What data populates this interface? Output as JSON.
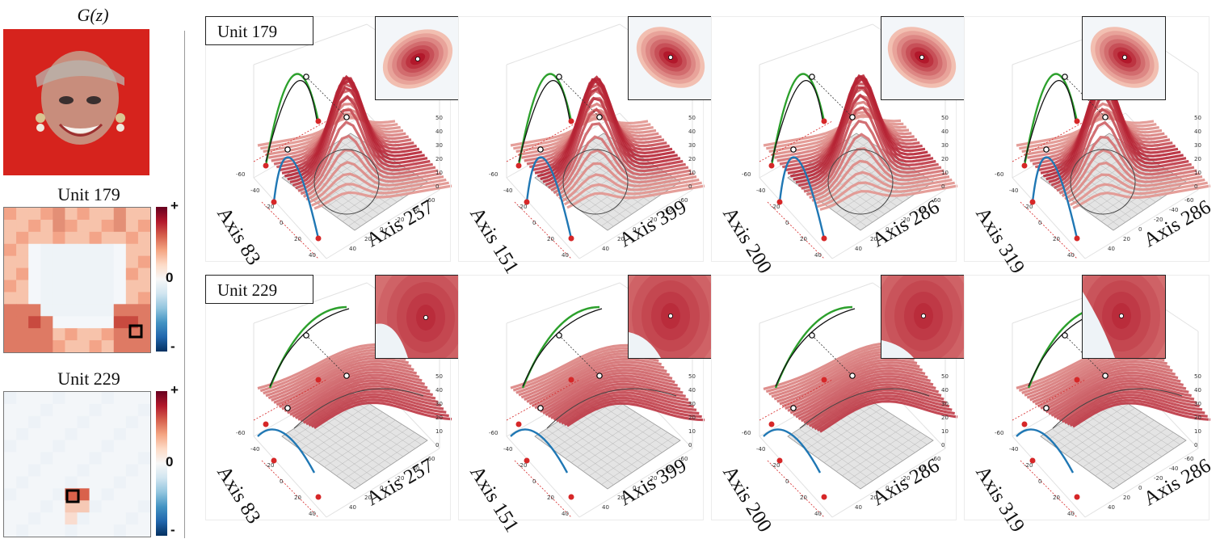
{
  "left_column": {
    "gz_title": "G(z)",
    "heatmaps": [
      {
        "title": "Unit 179",
        "top_tick": "+",
        "mid_tick": "0",
        "bottom_tick": "-"
      },
      {
        "title": "Unit 229",
        "top_tick": "+",
        "mid_tick": "0",
        "bottom_tick": "-"
      }
    ]
  },
  "rows": [
    {
      "label": "Unit 179",
      "panels": [
        {
          "axis_x": "Axis 83",
          "axis_y": "Axis 257"
        },
        {
          "axis_x": "Axis 151",
          "axis_y": "Axis 399"
        },
        {
          "axis_x": "Axis 200",
          "axis_y": "Axis 286"
        },
        {
          "axis_x": "Axis 319",
          "axis_y": "Axis 286"
        }
      ]
    },
    {
      "label": "Unit 229",
      "panels": [
        {
          "axis_x": "Axis 83",
          "axis_y": "Axis 257"
        },
        {
          "axis_x": "Axis 151",
          "axis_y": "Axis 399"
        },
        {
          "axis_x": "Axis 200",
          "axis_y": "Axis 286"
        },
        {
          "axis_x": "Axis 319",
          "axis_y": "Axis 286"
        }
      ]
    }
  ],
  "tick_labels": {
    "z_ticks": [
      "50",
      "40",
      "30",
      "20",
      "10",
      "0"
    ],
    "axis_ticks": [
      "-60",
      "-40",
      "-20",
      "0",
      "20",
      "40"
    ]
  },
  "colors": {
    "green_curve": "#2ca02c",
    "blue_curve": "#1f77b4",
    "red_marker": "#d62728",
    "surface_dark": "#b2182b",
    "surface_light": "#fddbc7"
  }
}
